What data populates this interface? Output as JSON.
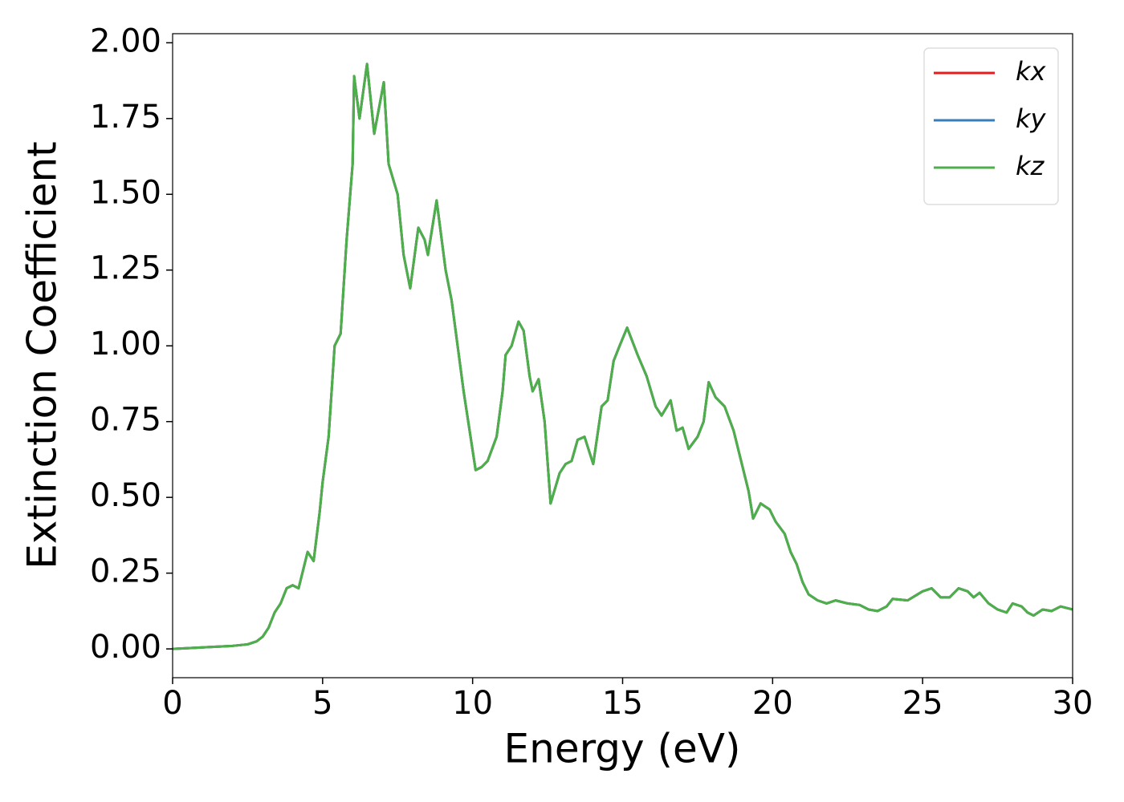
{
  "chart_data": {
    "type": "line",
    "xlabel": "Energy (eV)",
    "ylabel": "Extinction Coefficient",
    "x": [
      0,
      1,
      2,
      2.5,
      2.8,
      3.0,
      3.2,
      3.4,
      3.6,
      3.8,
      4.0,
      4.2,
      4.4,
      4.5,
      4.7,
      4.9,
      5.0,
      5.2,
      5.4,
      5.6,
      5.8,
      6.0,
      6.05,
      6.23,
      6.48,
      6.72,
      7.04,
      7.2,
      7.5,
      7.7,
      7.92,
      8.19,
      8.4,
      8.51,
      8.8,
      9.1,
      9.3,
      9.5,
      9.7,
      9.9,
      10.1,
      10.3,
      10.5,
      10.8,
      11.0,
      11.1,
      11.3,
      11.53,
      11.7,
      11.9,
      12.0,
      12.2,
      12.4,
      12.6,
      12.9,
      13.1,
      13.3,
      13.5,
      13.73,
      14.02,
      14.3,
      14.5,
      14.7,
      14.9,
      15.15,
      15.5,
      15.8,
      16.1,
      16.3,
      16.6,
      16.8,
      17.0,
      17.2,
      17.5,
      17.7,
      17.87,
      18.1,
      18.4,
      18.7,
      19.0,
      19.2,
      19.35,
      19.6,
      19.9,
      20.1,
      20.4,
      20.6,
      20.8,
      21.0,
      21.2,
      21.5,
      21.8,
      22.1,
      22.5,
      22.9,
      23.2,
      23.5,
      23.8,
      24.0,
      24.5,
      25.0,
      25.3,
      25.6,
      25.9,
      26.2,
      26.5,
      26.7,
      26.9,
      27.2,
      27.5,
      27.8,
      28.0,
      28.3,
      28.5,
      28.7,
      29.0,
      29.3,
      29.6,
      30.0
    ],
    "series": [
      {
        "name": "kx",
        "color": "#e41a1c",
        "values": [
          0,
          0.005,
          0.01,
          0.015,
          0.025,
          0.04,
          0.07,
          0.12,
          0.15,
          0.2,
          0.21,
          0.2,
          0.28,
          0.32,
          0.29,
          0.45,
          0.55,
          0.7,
          1.0,
          1.04,
          1.35,
          1.6,
          1.89,
          1.75,
          1.93,
          1.7,
          1.87,
          1.6,
          1.5,
          1.3,
          1.19,
          1.39,
          1.35,
          1.3,
          1.48,
          1.25,
          1.15,
          1.0,
          0.85,
          0.72,
          0.59,
          0.6,
          0.62,
          0.7,
          0.85,
          0.97,
          1.0,
          1.08,
          1.05,
          0.9,
          0.85,
          0.89,
          0.75,
          0.48,
          0.58,
          0.61,
          0.62,
          0.69,
          0.7,
          0.61,
          0.8,
          0.82,
          0.95,
          1.0,
          1.06,
          0.97,
          0.9,
          0.8,
          0.77,
          0.82,
          0.72,
          0.73,
          0.66,
          0.7,
          0.75,
          0.88,
          0.83,
          0.8,
          0.72,
          0.6,
          0.52,
          0.43,
          0.48,
          0.46,
          0.42,
          0.38,
          0.32,
          0.28,
          0.22,
          0.18,
          0.16,
          0.15,
          0.16,
          0.15,
          0.145,
          0.13,
          0.125,
          0.14,
          0.165,
          0.16,
          0.19,
          0.2,
          0.17,
          0.17,
          0.2,
          0.19,
          0.17,
          0.185,
          0.15,
          0.13,
          0.12,
          0.15,
          0.14,
          0.12,
          0.11,
          0.13,
          0.125,
          0.14,
          0.13
        ]
      },
      {
        "name": "ky",
        "color": "#377eb8",
        "values": [
          0,
          0.005,
          0.01,
          0.015,
          0.025,
          0.04,
          0.07,
          0.12,
          0.15,
          0.2,
          0.21,
          0.2,
          0.28,
          0.32,
          0.29,
          0.45,
          0.55,
          0.7,
          1.0,
          1.04,
          1.35,
          1.6,
          1.89,
          1.75,
          1.93,
          1.7,
          1.87,
          1.6,
          1.5,
          1.3,
          1.19,
          1.39,
          1.35,
          1.3,
          1.48,
          1.25,
          1.15,
          1.0,
          0.85,
          0.72,
          0.59,
          0.6,
          0.62,
          0.7,
          0.85,
          0.97,
          1.0,
          1.08,
          1.05,
          0.9,
          0.85,
          0.89,
          0.75,
          0.48,
          0.58,
          0.61,
          0.62,
          0.69,
          0.7,
          0.61,
          0.8,
          0.82,
          0.95,
          1.0,
          1.06,
          0.97,
          0.9,
          0.8,
          0.77,
          0.82,
          0.72,
          0.73,
          0.66,
          0.7,
          0.75,
          0.88,
          0.83,
          0.8,
          0.72,
          0.6,
          0.52,
          0.43,
          0.48,
          0.46,
          0.42,
          0.38,
          0.32,
          0.28,
          0.22,
          0.18,
          0.16,
          0.15,
          0.16,
          0.15,
          0.145,
          0.13,
          0.125,
          0.14,
          0.165,
          0.16,
          0.19,
          0.2,
          0.17,
          0.17,
          0.2,
          0.19,
          0.17,
          0.185,
          0.15,
          0.13,
          0.12,
          0.15,
          0.14,
          0.12,
          0.11,
          0.13,
          0.125,
          0.14,
          0.13
        ]
      },
      {
        "name": "kz",
        "color": "#4daf4a",
        "values": [
          0,
          0.005,
          0.01,
          0.015,
          0.025,
          0.04,
          0.07,
          0.12,
          0.15,
          0.2,
          0.21,
          0.2,
          0.28,
          0.32,
          0.29,
          0.45,
          0.55,
          0.7,
          1.0,
          1.04,
          1.35,
          1.6,
          1.89,
          1.75,
          1.93,
          1.7,
          1.87,
          1.6,
          1.5,
          1.3,
          1.19,
          1.39,
          1.35,
          1.3,
          1.48,
          1.25,
          1.15,
          1.0,
          0.85,
          0.72,
          0.59,
          0.6,
          0.62,
          0.7,
          0.85,
          0.97,
          1.0,
          1.08,
          1.05,
          0.9,
          0.85,
          0.89,
          0.75,
          0.48,
          0.58,
          0.61,
          0.62,
          0.69,
          0.7,
          0.61,
          0.8,
          0.82,
          0.95,
          1.0,
          1.06,
          0.97,
          0.9,
          0.8,
          0.77,
          0.82,
          0.72,
          0.73,
          0.66,
          0.7,
          0.75,
          0.88,
          0.83,
          0.8,
          0.72,
          0.6,
          0.52,
          0.43,
          0.48,
          0.46,
          0.42,
          0.38,
          0.32,
          0.28,
          0.22,
          0.18,
          0.16,
          0.15,
          0.16,
          0.15,
          0.145,
          0.13,
          0.125,
          0.14,
          0.165,
          0.16,
          0.19,
          0.2,
          0.17,
          0.17,
          0.2,
          0.19,
          0.17,
          0.185,
          0.15,
          0.13,
          0.12,
          0.15,
          0.14,
          0.12,
          0.11,
          0.13,
          0.125,
          0.14,
          0.13
        ]
      }
    ],
    "xlim": [
      0,
      30
    ],
    "xticks": [
      0,
      5,
      10,
      15,
      20,
      25,
      30
    ],
    "ylim": [
      -0.095,
      2.03
    ],
    "yticks": [
      {
        "value": 0,
        "label": "0.00"
      },
      {
        "value": 0.25,
        "label": "0.25"
      },
      {
        "value": 0.5,
        "label": "0.50"
      },
      {
        "value": 0.75,
        "label": "0.75"
      },
      {
        "value": 1,
        "label": "1.00"
      },
      {
        "value": 1.25,
        "label": "1.25"
      },
      {
        "value": 1.5,
        "label": "1.50"
      },
      {
        "value": 1.75,
        "label": "1.75"
      },
      {
        "value": 2,
        "label": "2.00"
      }
    ],
    "legend": "upper right",
    "grid": false
  }
}
